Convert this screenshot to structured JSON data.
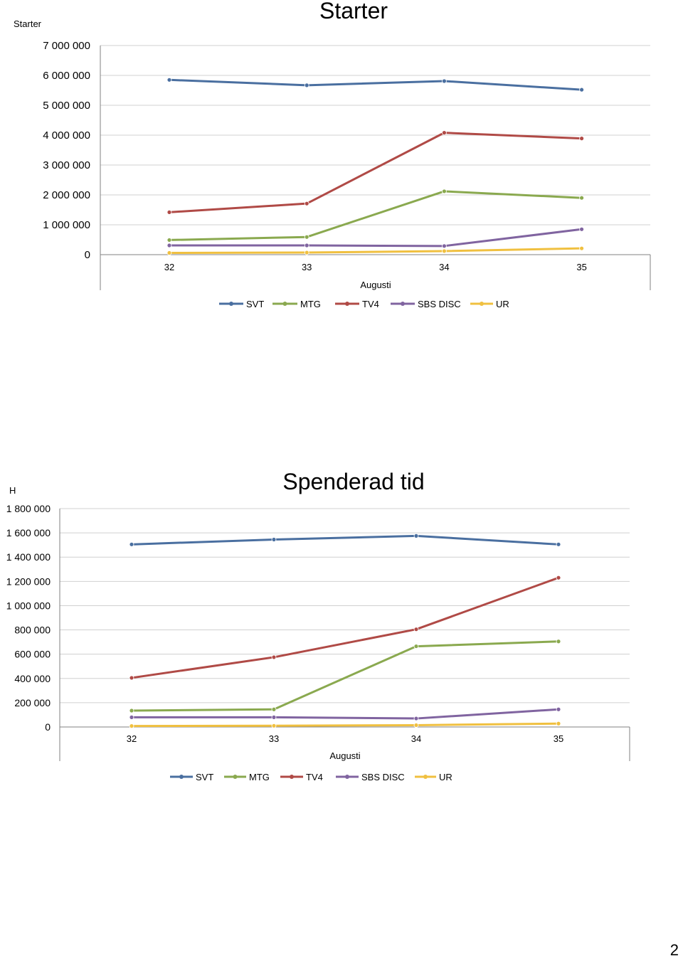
{
  "page": {
    "number": "2"
  },
  "colors": {
    "SVT": "#4a6fa0",
    "MTG": "#8aa94f",
    "TV4": "#b04a46",
    "SBS DISC": "#8064a0",
    "UR": "#f0c040",
    "grid": "#d0d0d0",
    "axis": "#808080"
  },
  "chart_data": [
    {
      "type": "line",
      "title": "Starter",
      "corner_label": "Starter",
      "xlabel": "Augusti",
      "ylabel": "",
      "categories": [
        "32",
        "33",
        "34",
        "35"
      ],
      "ylim": [
        0,
        7000000
      ],
      "yticks": [
        {
          "value": 0,
          "label": "0"
        },
        {
          "value": 1000000,
          "label": "1 000 000"
        },
        {
          "value": 2000000,
          "label": "2 000 000"
        },
        {
          "value": 3000000,
          "label": "3 000 000"
        },
        {
          "value": 4000000,
          "label": "4 000 000"
        },
        {
          "value": 5000000,
          "label": "5 000 000"
        },
        {
          "value": 6000000,
          "label": "6 000 000"
        },
        {
          "value": 7000000,
          "label": "7 000 000"
        }
      ],
      "grid": true,
      "legend_position": "bottom",
      "series": [
        {
          "name": "SVT",
          "values": [
            5850000,
            5670000,
            5810000,
            5520000
          ]
        },
        {
          "name": "MTG",
          "values": [
            490000,
            590000,
            2120000,
            1900000
          ]
        },
        {
          "name": "TV4",
          "values": [
            1420000,
            1710000,
            4080000,
            3890000
          ]
        },
        {
          "name": "SBS DISC",
          "values": [
            310000,
            310000,
            290000,
            850000
          ]
        },
        {
          "name": "UR",
          "values": [
            60000,
            70000,
            120000,
            210000
          ]
        }
      ]
    },
    {
      "type": "line",
      "title": "Spenderad tid",
      "corner_label": "H",
      "xlabel": "Augusti",
      "ylabel": "",
      "categories": [
        "32",
        "33",
        "34",
        "35"
      ],
      "ylim": [
        0,
        1800000
      ],
      "yticks": [
        {
          "value": 0,
          "label": "0"
        },
        {
          "value": 200000,
          "label": "200 000"
        },
        {
          "value": 400000,
          "label": "400 000"
        },
        {
          "value": 600000,
          "label": "600 000"
        },
        {
          "value": 800000,
          "label": "800 000"
        },
        {
          "value": 1000000,
          "label": "1 000 000"
        },
        {
          "value": 1200000,
          "label": "1 200 000"
        },
        {
          "value": 1400000,
          "label": "1 400 000"
        },
        {
          "value": 1600000,
          "label": "1 600 000"
        },
        {
          "value": 1800000,
          "label": "1 800 000"
        }
      ],
      "grid": true,
      "legend_position": "bottom",
      "series": [
        {
          "name": "SVT",
          "values": [
            1505000,
            1545000,
            1575000,
            1505000
          ]
        },
        {
          "name": "MTG",
          "values": [
            135000,
            145000,
            665000,
            705000
          ]
        },
        {
          "name": "TV4",
          "values": [
            405000,
            575000,
            805000,
            1230000
          ]
        },
        {
          "name": "SBS DISC",
          "values": [
            80000,
            80000,
            70000,
            145000
          ]
        },
        {
          "name": "UR",
          "values": [
            8000,
            10000,
            15000,
            28000
          ]
        }
      ]
    }
  ]
}
